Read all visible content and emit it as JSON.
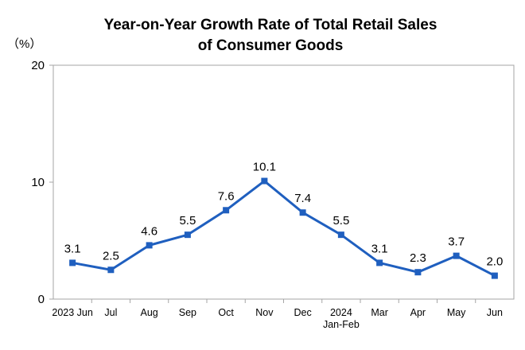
{
  "chart_data": {
    "type": "line",
    "title_line1": "Year-on-Year Growth Rate of Total Retail Sales",
    "title_line2": "of Consumer Goods",
    "unit_label": "（%）",
    "categories": [
      [
        "2023 Jun"
      ],
      [
        "Jul"
      ],
      [
        "Aug"
      ],
      [
        "Sep"
      ],
      [
        "Oct"
      ],
      [
        "Nov"
      ],
      [
        "Dec"
      ],
      [
        "2024",
        "Jan-Feb"
      ],
      [
        "Mar"
      ],
      [
        "Apr"
      ],
      [
        "May"
      ],
      [
        "Jun"
      ]
    ],
    "values": [
      3.1,
      2.5,
      4.6,
      5.5,
      7.6,
      10.1,
      7.4,
      5.5,
      3.1,
      2.3,
      3.7,
      2.0
    ],
    "data_labels": [
      "3.1",
      "2.5",
      "4.6",
      "5.5",
      "7.6",
      "10.1",
      "7.4",
      "5.5",
      "3.1",
      "2.3",
      "3.7",
      "2.0"
    ],
    "yticks": [
      "0",
      "10",
      "20"
    ],
    "ylim": [
      0,
      20
    ],
    "grid": false,
    "legend": "none",
    "line_color": "#1f5fbf",
    "axis_color": "#a6a6a6"
  }
}
